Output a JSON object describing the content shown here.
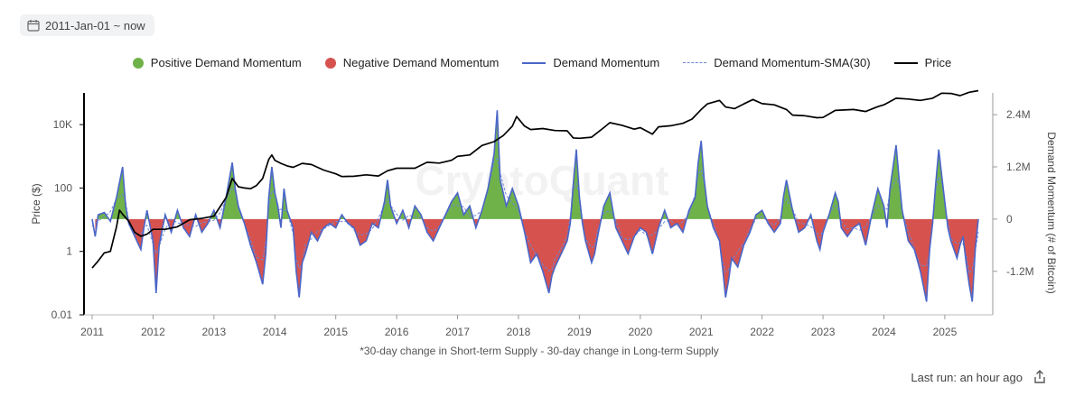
{
  "date_range": "2011-Jan-01 ~ now",
  "legend": [
    {
      "label": "Positive Demand Momentum",
      "kind": "dot",
      "color": "#6fb24a"
    },
    {
      "label": "Negative Demand Momentum",
      "kind": "dot",
      "color": "#d6524f"
    },
    {
      "label": "Demand Momentum",
      "kind": "line",
      "color": "#4a66c8"
    },
    {
      "label": "Demand Momentum-SMA(30)",
      "kind": "dashed",
      "color": "#6f86d6"
    },
    {
      "label": "Price",
      "kind": "line",
      "color": "#000000"
    }
  ],
  "footer": {
    "last_run": "Last run: an hour ago"
  },
  "watermark": "CryptoQuant",
  "chart_data": {
    "type": "area",
    "subtitle": "*30-day change in Short-term Supply - 30-day change in Long-term Supply",
    "xlabel": "",
    "x_range": [
      2011.0,
      2025.55
    ],
    "x_ticks": [
      "2011",
      "2012",
      "2013",
      "2014",
      "2015",
      "2016",
      "2017",
      "2018",
      "2019",
      "2020",
      "2021",
      "2022",
      "2023",
      "2024",
      "2025"
    ],
    "y_left": {
      "label": "Price ($)",
      "scale": "log",
      "range": [
        0.01,
        100000
      ],
      "ticks": [
        "0.01",
        "1",
        "100",
        "10K"
      ],
      "tick_values": [
        0.01,
        1,
        100,
        10000
      ]
    },
    "y_right": {
      "label": "Demand Momentum (# of Bitcoin)",
      "range": [
        -2200000,
        2900000
      ],
      "ticks": [
        "-1.2M",
        "0",
        "1.2M",
        "2.4M"
      ],
      "tick_values": [
        -1200000,
        0,
        1200000,
        2400000
      ]
    },
    "colors": {
      "positive": "#6fb24a",
      "negative": "#d6524f",
      "momentum": "#4a66c8",
      "sma": "#6f86d6",
      "price": "#000000"
    },
    "series": [
      {
        "name": "Price",
        "axis": "left",
        "points": [
          [
            2011.0,
            0.3
          ],
          [
            2011.1,
            0.5
          ],
          [
            2011.2,
            0.9
          ],
          [
            2011.3,
            1.0
          ],
          [
            2011.4,
            6
          ],
          [
            2011.45,
            20
          ],
          [
            2011.5,
            15
          ],
          [
            2011.6,
            9
          ],
          [
            2011.7,
            4
          ],
          [
            2011.8,
            3
          ],
          [
            2011.9,
            3.5
          ],
          [
            2012.0,
            5
          ],
          [
            2012.2,
            5
          ],
          [
            2012.4,
            6
          ],
          [
            2012.6,
            10
          ],
          [
            2012.8,
            11
          ],
          [
            2013.0,
            13
          ],
          [
            2013.2,
            50
          ],
          [
            2013.3,
            200
          ],
          [
            2013.4,
            110
          ],
          [
            2013.5,
            100
          ],
          [
            2013.6,
            95
          ],
          [
            2013.7,
            120
          ],
          [
            2013.8,
            200
          ],
          [
            2013.9,
            800
          ],
          [
            2013.95,
            1100
          ],
          [
            2014.0,
            750
          ],
          [
            2014.1,
            600
          ],
          [
            2014.2,
            500
          ],
          [
            2014.3,
            450
          ],
          [
            2014.45,
            600
          ],
          [
            2014.6,
            550
          ],
          [
            2014.8,
            370
          ],
          [
            2015.0,
            280
          ],
          [
            2015.1,
            230
          ],
          [
            2015.3,
            235
          ],
          [
            2015.5,
            260
          ],
          [
            2015.7,
            240
          ],
          [
            2015.85,
            350
          ],
          [
            2016.0,
            420
          ],
          [
            2016.3,
            420
          ],
          [
            2016.5,
            650
          ],
          [
            2016.7,
            610
          ],
          [
            2016.9,
            750
          ],
          [
            2017.0,
            1000
          ],
          [
            2017.2,
            1100
          ],
          [
            2017.4,
            2200
          ],
          [
            2017.6,
            2900
          ],
          [
            2017.75,
            4500
          ],
          [
            2017.9,
            9000
          ],
          [
            2017.97,
            18000
          ],
          [
            2018.1,
            9000
          ],
          [
            2018.2,
            7000
          ],
          [
            2018.4,
            7500
          ],
          [
            2018.6,
            6500
          ],
          [
            2018.8,
            6400
          ],
          [
            2018.9,
            3800
          ],
          [
            2019.0,
            3700
          ],
          [
            2019.2,
            4000
          ],
          [
            2019.4,
            8000
          ],
          [
            2019.5,
            11500
          ],
          [
            2019.7,
            9500
          ],
          [
            2019.9,
            7200
          ],
          [
            2020.0,
            8000
          ],
          [
            2020.2,
            5000
          ],
          [
            2020.3,
            8500
          ],
          [
            2020.5,
            9200
          ],
          [
            2020.7,
            11000
          ],
          [
            2020.85,
            15000
          ],
          [
            2021.0,
            30000
          ],
          [
            2021.1,
            45000
          ],
          [
            2021.3,
            58000
          ],
          [
            2021.4,
            36000
          ],
          [
            2021.55,
            32000
          ],
          [
            2021.7,
            45000
          ],
          [
            2021.85,
            62000
          ],
          [
            2022.0,
            46000
          ],
          [
            2022.2,
            42000
          ],
          [
            2022.4,
            30000
          ],
          [
            2022.5,
            20000
          ],
          [
            2022.7,
            19000
          ],
          [
            2022.9,
            16500
          ],
          [
            2023.0,
            16800
          ],
          [
            2023.2,
            28000
          ],
          [
            2023.5,
            30000
          ],
          [
            2023.7,
            26000
          ],
          [
            2023.9,
            37000
          ],
          [
            2024.0,
            42000
          ],
          [
            2024.2,
            68000
          ],
          [
            2024.4,
            64000
          ],
          [
            2024.6,
            58000
          ],
          [
            2024.8,
            68000
          ],
          [
            2024.95,
            98000
          ],
          [
            2025.1,
            96000
          ],
          [
            2025.25,
            82000
          ],
          [
            2025.4,
            105000
          ],
          [
            2025.55,
            118000
          ]
        ]
      },
      {
        "name": "Demand Momentum",
        "axis": "right",
        "points": [
          [
            2011.0,
            0
          ],
          [
            2011.05,
            -400000
          ],
          [
            2011.1,
            100000
          ],
          [
            2011.2,
            150000
          ],
          [
            2011.3,
            -50000
          ],
          [
            2011.4,
            500000
          ],
          [
            2011.5,
            1200000
          ],
          [
            2011.55,
            300000
          ],
          [
            2011.6,
            -100000
          ],
          [
            2011.7,
            -400000
          ],
          [
            2011.8,
            -700000
          ],
          [
            2011.85,
            -200000
          ],
          [
            2011.9,
            200000
          ],
          [
            2012.0,
            -500000
          ],
          [
            2012.05,
            -1700000
          ],
          [
            2012.1,
            -600000
          ],
          [
            2012.2,
            100000
          ],
          [
            2012.3,
            -300000
          ],
          [
            2012.4,
            200000
          ],
          [
            2012.5,
            -200000
          ],
          [
            2012.6,
            -400000
          ],
          [
            2012.7,
            100000
          ],
          [
            2012.8,
            -300000
          ],
          [
            2012.9,
            -100000
          ],
          [
            2013.0,
            200000
          ],
          [
            2013.1,
            -200000
          ],
          [
            2013.2,
            500000
          ],
          [
            2013.3,
            1300000
          ],
          [
            2013.35,
            700000
          ],
          [
            2013.4,
            300000
          ],
          [
            2013.5,
            -100000
          ],
          [
            2013.6,
            -600000
          ],
          [
            2013.7,
            -1000000
          ],
          [
            2013.8,
            -1500000
          ],
          [
            2013.85,
            -800000
          ],
          [
            2013.9,
            500000
          ],
          [
            2013.95,
            1200000
          ],
          [
            2014.0,
            600000
          ],
          [
            2014.05,
            300000
          ],
          [
            2014.1,
            -200000
          ],
          [
            2014.15,
            700000
          ],
          [
            2014.2,
            200000
          ],
          [
            2014.3,
            -200000
          ],
          [
            2014.35,
            -1200000
          ],
          [
            2014.4,
            -1800000
          ],
          [
            2014.45,
            -1000000
          ],
          [
            2014.5,
            -800000
          ],
          [
            2014.6,
            -300000
          ],
          [
            2014.7,
            -500000
          ],
          [
            2014.8,
            -200000
          ],
          [
            2014.9,
            -100000
          ],
          [
            2015.0,
            -200000
          ],
          [
            2015.1,
            100000
          ],
          [
            2015.2,
            -100000
          ],
          [
            2015.3,
            -200000
          ],
          [
            2015.4,
            -600000
          ],
          [
            2015.5,
            -500000
          ],
          [
            2015.6,
            -100000
          ],
          [
            2015.7,
            -200000
          ],
          [
            2015.8,
            400000
          ],
          [
            2015.85,
            900000
          ],
          [
            2015.9,
            300000
          ],
          [
            2016.0,
            -100000
          ],
          [
            2016.1,
            200000
          ],
          [
            2016.2,
            -200000
          ],
          [
            2016.3,
            300000
          ],
          [
            2016.4,
            100000
          ],
          [
            2016.5,
            -300000
          ],
          [
            2016.6,
            -500000
          ],
          [
            2016.7,
            -200000
          ],
          [
            2016.8,
            100000
          ],
          [
            2016.9,
            400000
          ],
          [
            2017.0,
            600000
          ],
          [
            2017.1,
            100000
          ],
          [
            2017.2,
            300000
          ],
          [
            2017.3,
            -200000
          ],
          [
            2017.4,
            200000
          ],
          [
            2017.5,
            700000
          ],
          [
            2017.6,
            1500000
          ],
          [
            2017.65,
            2500000
          ],
          [
            2017.7,
            900000
          ],
          [
            2017.8,
            300000
          ],
          [
            2017.9,
            700000
          ],
          [
            2018.0,
            300000
          ],
          [
            2018.1,
            -300000
          ],
          [
            2018.2,
            -1000000
          ],
          [
            2018.3,
            -800000
          ],
          [
            2018.4,
            -1200000
          ],
          [
            2018.5,
            -1700000
          ],
          [
            2018.55,
            -1300000
          ],
          [
            2018.6,
            -1100000
          ],
          [
            2018.7,
            -800000
          ],
          [
            2018.8,
            -500000
          ],
          [
            2018.85,
            -100000
          ],
          [
            2018.9,
            800000
          ],
          [
            2018.95,
            1600000
          ],
          [
            2019.0,
            500000
          ],
          [
            2019.05,
            -100000
          ],
          [
            2019.1,
            -500000
          ],
          [
            2019.2,
            -1000000
          ],
          [
            2019.25,
            -800000
          ],
          [
            2019.3,
            -400000
          ],
          [
            2019.4,
            300000
          ],
          [
            2019.5,
            600000
          ],
          [
            2019.6,
            -200000
          ],
          [
            2019.7,
            -500000
          ],
          [
            2019.8,
            -800000
          ],
          [
            2019.9,
            -400000
          ],
          [
            2020.0,
            -200000
          ],
          [
            2020.1,
            -300000
          ],
          [
            2020.2,
            -800000
          ],
          [
            2020.3,
            -200000
          ],
          [
            2020.4,
            200000
          ],
          [
            2020.5,
            -200000
          ],
          [
            2020.6,
            -100000
          ],
          [
            2020.7,
            -300000
          ],
          [
            2020.8,
            200000
          ],
          [
            2020.9,
            500000
          ],
          [
            2020.95,
            1300000
          ],
          [
            2021.0,
            1800000
          ],
          [
            2021.05,
            900000
          ],
          [
            2021.1,
            300000
          ],
          [
            2021.2,
            -200000
          ],
          [
            2021.3,
            -500000
          ],
          [
            2021.35,
            -1100000
          ],
          [
            2021.4,
            -1800000
          ],
          [
            2021.45,
            -1400000
          ],
          [
            2021.5,
            -900000
          ],
          [
            2021.6,
            -1100000
          ],
          [
            2021.7,
            -600000
          ],
          [
            2021.8,
            -300000
          ],
          [
            2021.9,
            100000
          ],
          [
            2022.0,
            200000
          ],
          [
            2022.1,
            -100000
          ],
          [
            2022.2,
            -300000
          ],
          [
            2022.3,
            -100000
          ],
          [
            2022.35,
            500000
          ],
          [
            2022.4,
            900000
          ],
          [
            2022.5,
            200000
          ],
          [
            2022.6,
            -300000
          ],
          [
            2022.7,
            -200000
          ],
          [
            2022.8,
            100000
          ],
          [
            2022.9,
            -500000
          ],
          [
            2022.95,
            -700000
          ],
          [
            2023.0,
            -300000
          ],
          [
            2023.1,
            100000
          ],
          [
            2023.2,
            600000
          ],
          [
            2023.25,
            400000
          ],
          [
            2023.3,
            -200000
          ],
          [
            2023.4,
            -400000
          ],
          [
            2023.5,
            -200000
          ],
          [
            2023.6,
            -100000
          ],
          [
            2023.7,
            -600000
          ],
          [
            2023.8,
            100000
          ],
          [
            2023.9,
            700000
          ],
          [
            2024.0,
            300000
          ],
          [
            2024.05,
            -200000
          ],
          [
            2024.1,
            700000
          ],
          [
            2024.2,
            1700000
          ],
          [
            2024.25,
            900000
          ],
          [
            2024.3,
            200000
          ],
          [
            2024.4,
            -500000
          ],
          [
            2024.5,
            -700000
          ],
          [
            2024.6,
            -1200000
          ],
          [
            2024.7,
            -1900000
          ],
          [
            2024.75,
            -700000
          ],
          [
            2024.8,
            -100000
          ],
          [
            2024.85,
            800000
          ],
          [
            2024.9,
            1600000
          ],
          [
            2024.95,
            1000000
          ],
          [
            2025.0,
            400000
          ],
          [
            2025.05,
            -200000
          ],
          [
            2025.1,
            -500000
          ],
          [
            2025.2,
            -900000
          ],
          [
            2025.25,
            -600000
          ],
          [
            2025.3,
            -400000
          ],
          [
            2025.35,
            -1000000
          ],
          [
            2025.4,
            -1500000
          ],
          [
            2025.45,
            -1900000
          ],
          [
            2025.5,
            -700000
          ],
          [
            2025.55,
            0
          ]
        ]
      }
    ]
  }
}
